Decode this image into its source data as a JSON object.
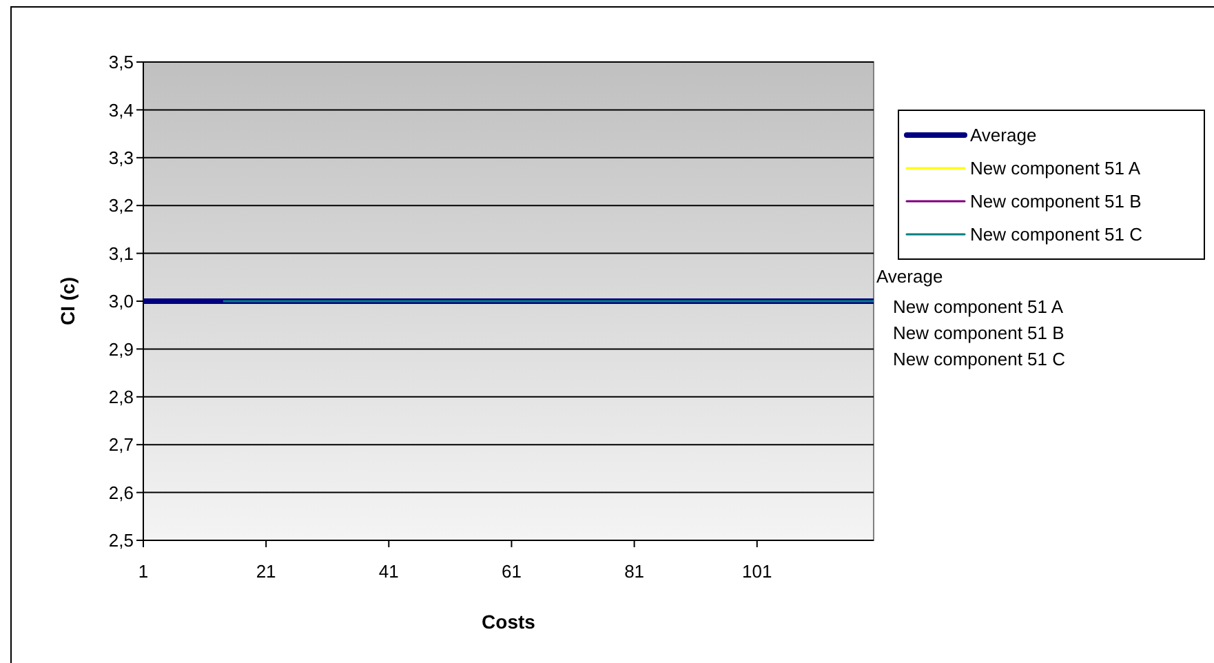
{
  "chart_data": {
    "type": "line",
    "xlabel": "Costs",
    "ylabel": "CI (c)",
    "xlim": [
      1,
      120
    ],
    "xticks": [
      1,
      21,
      41,
      61,
      81,
      101
    ],
    "ylim": [
      2.5,
      3.5
    ],
    "yticks": [
      {
        "value": 2.5,
        "label": "2,5"
      },
      {
        "value": 2.6,
        "label": "2,6"
      },
      {
        "value": 2.7,
        "label": "2,7"
      },
      {
        "value": 2.8,
        "label": "2,8"
      },
      {
        "value": 2.9,
        "label": "2,9"
      },
      {
        "value": 3.0,
        "label": "3,0"
      },
      {
        "value": 3.1,
        "label": "3,1"
      },
      {
        "value": 3.2,
        "label": "3,2"
      },
      {
        "value": 3.3,
        "label": "3,3"
      },
      {
        "value": 3.4,
        "label": "3,4"
      },
      {
        "value": 3.5,
        "label": "3,5"
      }
    ],
    "grid": "y",
    "legend": "right",
    "marker": "none",
    "line_style": "solid",
    "series": [
      {
        "name": "Average",
        "color": "#000080",
        "x": [
          1,
          120
        ],
        "values": [
          3.0,
          3.0
        ]
      },
      {
        "name": "New component 51 A",
        "color": "#ffff00"
      },
      {
        "name": "New component 51 B",
        "color": "#800080"
      },
      {
        "name": "New component 51 C",
        "color": "#008080",
        "x": [
          14,
          120
        ],
        "values": [
          3.0,
          3.0
        ]
      }
    ],
    "annotations": [
      "Average",
      "New component 51 A",
      "New component 51 B",
      "New component 51 C"
    ]
  }
}
